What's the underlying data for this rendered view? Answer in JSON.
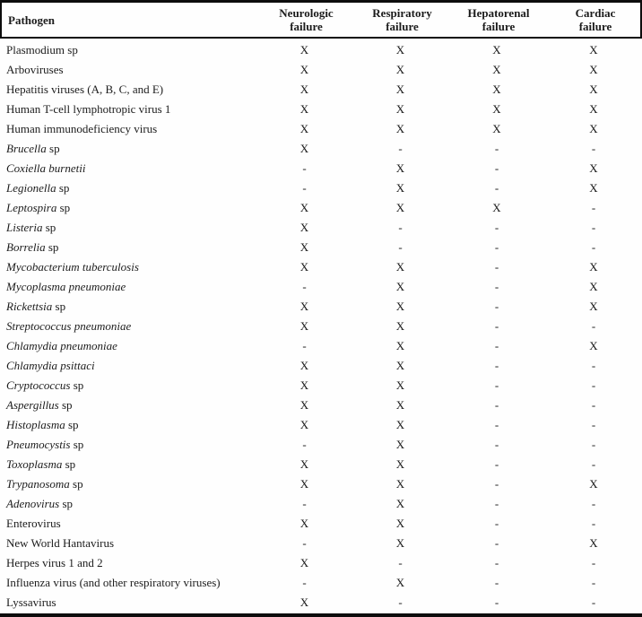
{
  "table": {
    "title_semantic": "Pathogens associated with organ failure",
    "marker_present": "X",
    "marker_absent": "-",
    "border_color": "#0d0d0d",
    "text_color": "#1c1c1c",
    "columns": [
      {
        "id": "pathogen",
        "label": "Pathogen"
      },
      {
        "id": "neurologic",
        "line1": "Neurologic",
        "line2": "failure"
      },
      {
        "id": "respiratory",
        "line1": "Respiratory",
        "line2": "failure"
      },
      {
        "id": "hepatorenal",
        "line1": "Hepatorenal",
        "line2": "failure"
      },
      {
        "id": "cardiac",
        "line1": "Cardiac",
        "line2": "failure"
      }
    ],
    "rows": [
      {
        "name_italic": "",
        "name_rest": "Plasmodium sp",
        "values": [
          "X",
          "X",
          "X",
          "X"
        ]
      },
      {
        "name_italic": "",
        "name_rest": "Arboviruses",
        "values": [
          "X",
          "X",
          "X",
          "X"
        ]
      },
      {
        "name_italic": "",
        "name_rest": "Hepatitis viruses (A, B, C, and E)",
        "values": [
          "X",
          "X",
          "X",
          "X"
        ]
      },
      {
        "name_italic": "",
        "name_rest": "Human T-cell lymphotropic virus 1",
        "values": [
          "X",
          "X",
          "X",
          "X"
        ]
      },
      {
        "name_italic": "",
        "name_rest": "Human immunodeficiency virus",
        "values": [
          "X",
          "X",
          "X",
          "X"
        ]
      },
      {
        "name_italic": "Brucella",
        "name_rest": " sp",
        "values": [
          "X",
          "-",
          "-",
          "-"
        ]
      },
      {
        "name_italic": "Coxiella burnetii",
        "name_rest": "",
        "values": [
          "-",
          "X",
          "-",
          "X"
        ]
      },
      {
        "name_italic": "Legionella",
        "name_rest": " sp",
        "values": [
          "-",
          "X",
          "-",
          "X"
        ]
      },
      {
        "name_italic": "Leptospira",
        "name_rest": " sp",
        "values": [
          "X",
          "X",
          "X",
          "-"
        ]
      },
      {
        "name_italic": "Listeria",
        "name_rest": " sp",
        "values": [
          "X",
          "-",
          "-",
          "-"
        ]
      },
      {
        "name_italic": "Borrelia",
        "name_rest": " sp",
        "values": [
          "X",
          "-",
          "-",
          "-"
        ]
      },
      {
        "name_italic": "Mycobacterium tuberculosis",
        "name_rest": "",
        "values": [
          "X",
          "X",
          "-",
          "X"
        ]
      },
      {
        "name_italic": "Mycoplasma pneumoniae",
        "name_rest": "",
        "values": [
          "-",
          "X",
          "-",
          "X"
        ]
      },
      {
        "name_italic": "Rickettsia",
        "name_rest": " sp",
        "values": [
          "X",
          "X",
          "-",
          "X"
        ]
      },
      {
        "name_italic": "Streptococcus pneumoniae",
        "name_rest": "",
        "values": [
          "X",
          "X",
          "-",
          "-"
        ]
      },
      {
        "name_italic": "Chlamydia pneumoniae",
        "name_rest": "",
        "values": [
          "-",
          "X",
          "-",
          "X"
        ]
      },
      {
        "name_italic": "Chlamydia psittaci",
        "name_rest": "",
        "values": [
          "X",
          "X",
          "-",
          "-"
        ]
      },
      {
        "name_italic": "Cryptococcus",
        "name_rest": " sp",
        "values": [
          "X",
          "X",
          "-",
          "-"
        ]
      },
      {
        "name_italic": "Aspergillus",
        "name_rest": " sp",
        "values": [
          "X",
          "X",
          "-",
          "-"
        ]
      },
      {
        "name_italic": "Histoplasma",
        "name_rest": " sp",
        "values": [
          "X",
          "X",
          "-",
          "-"
        ]
      },
      {
        "name_italic": "Pneumocystis",
        "name_rest": " sp",
        "values": [
          "-",
          "X",
          "-",
          "-"
        ]
      },
      {
        "name_italic": "Toxoplasma",
        "name_rest": " sp",
        "values": [
          "X",
          "X",
          "-",
          "-"
        ]
      },
      {
        "name_italic": "Trypanosoma",
        "name_rest": " sp",
        "values": [
          "X",
          "X",
          "-",
          "X"
        ]
      },
      {
        "name_italic": "Adenovirus",
        "name_rest": " sp",
        "values": [
          "-",
          "X",
          "-",
          "-"
        ]
      },
      {
        "name_italic": "",
        "name_rest": "Enterovirus",
        "values": [
          "X",
          "X",
          "-",
          "-"
        ]
      },
      {
        "name_italic": "",
        "name_rest": "New World Hantavirus",
        "values": [
          "-",
          "X",
          "-",
          "X"
        ]
      },
      {
        "name_italic": "",
        "name_rest": "Herpes virus 1 and 2",
        "values": [
          "X",
          "-",
          "-",
          "-"
        ]
      },
      {
        "name_italic": "",
        "name_rest": "Influenza virus (and other respiratory viruses)",
        "values": [
          "-",
          "X",
          "-",
          "-"
        ]
      },
      {
        "name_italic": "",
        "name_rest": "Lyssavirus",
        "values": [
          "X",
          "-",
          "-",
          "-"
        ]
      }
    ]
  }
}
